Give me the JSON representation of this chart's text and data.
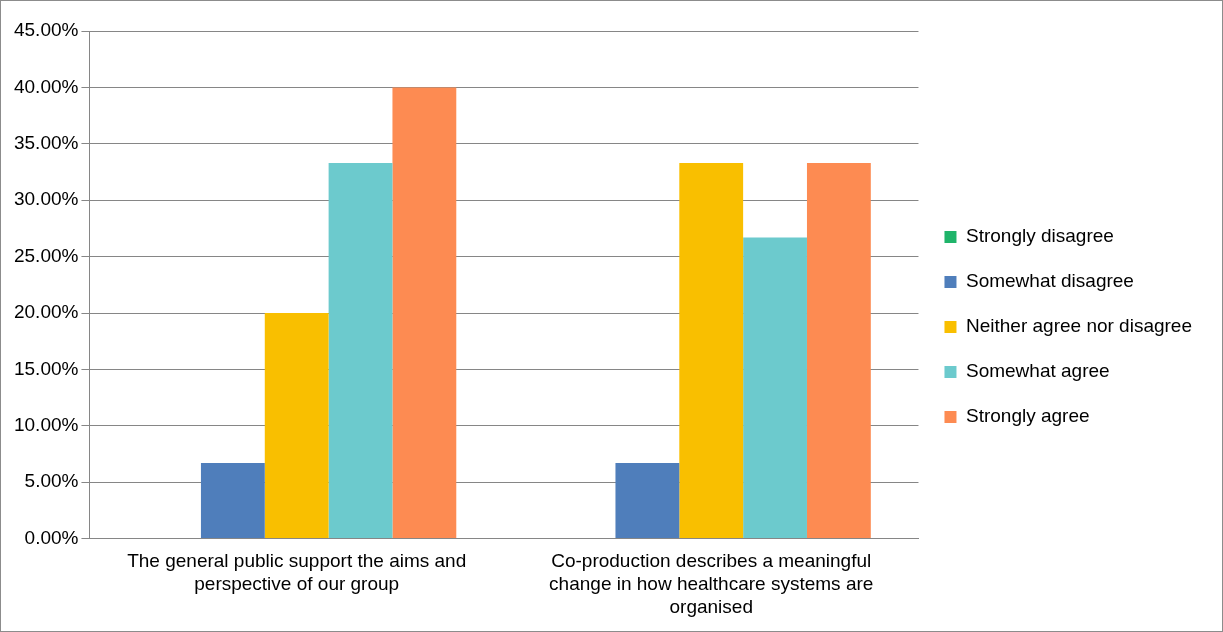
{
  "chart_data": {
    "type": "bar",
    "categories": [
      "The general public support the aims and perspective of our group",
      "Co-production describes a meaningful change in how healthcare systems are organised"
    ],
    "series": [
      {
        "name": "Strongly disagree",
        "color": "#1fb46a",
        "values": [
          0,
          0
        ]
      },
      {
        "name": "Somewhat disagree",
        "color": "#4f7ebb",
        "values": [
          6.7,
          6.7
        ]
      },
      {
        "name": "Neither agree nor disagree",
        "color": "#f9bf00",
        "values": [
          20,
          33.3
        ]
      },
      {
        "name": "Somewhat agree",
        "color": "#6ccacd",
        "values": [
          33.3,
          26.7
        ]
      },
      {
        "name": "Strongly agree",
        "color": "#fd8b52",
        "values": [
          40,
          33.3
        ]
      }
    ],
    "ylim": [
      0,
      45
    ],
    "yticks": [
      {
        "value": 0,
        "label": "0.00%"
      },
      {
        "value": 5,
        "label": "5.00%"
      },
      {
        "value": 10,
        "label": "10.00%"
      },
      {
        "value": 15,
        "label": "15.00%"
      },
      {
        "value": 20,
        "label": "20.00%"
      },
      {
        "value": 25,
        "label": "25.00%"
      },
      {
        "value": 30,
        "label": "30.00%"
      },
      {
        "value": 35,
        "label": "35.00%"
      },
      {
        "value": 40,
        "label": "40.00%"
      },
      {
        "value": 45,
        "label": "45.00%"
      }
    ],
    "grid": "y",
    "legend": "right"
  }
}
